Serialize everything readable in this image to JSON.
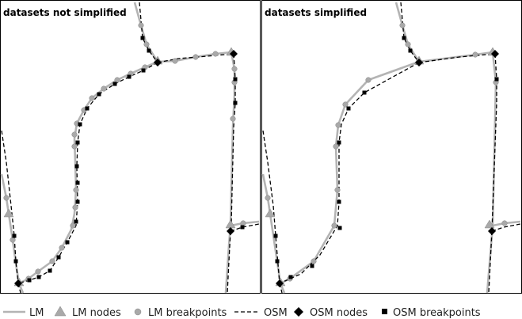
{
  "panels": [
    {
      "title": "datasets not simplified"
    },
    {
      "title": "datasets simplified"
    }
  ],
  "legend": [
    {
      "label": "LM",
      "symbol": "gray-solid-line"
    },
    {
      "label": "LM nodes",
      "symbol": "gray-triangle"
    },
    {
      "label": "LM breakpoints",
      "symbol": "gray-circle"
    },
    {
      "label": "OSM",
      "symbol": "black-dashed-line"
    },
    {
      "label": "OSM nodes",
      "symbol": "black-diamond"
    },
    {
      "label": "OSM breakpoints",
      "symbol": "black-square"
    }
  ],
  "colors": {
    "lm": "#b4b4b4",
    "lm_marker": "#a9a9a9",
    "osm": "#000000",
    "frame": "#000000"
  }
}
